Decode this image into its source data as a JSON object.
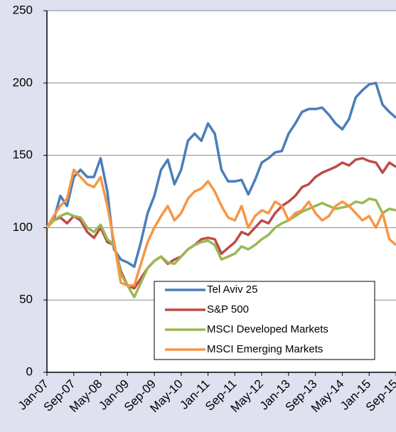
{
  "chart_data": {
    "type": "line",
    "categories": [
      "Jan-07",
      null,
      null,
      null,
      "Sep-07",
      null,
      null,
      null,
      "May-08",
      null,
      null,
      null,
      "Jan-09",
      null,
      null,
      null,
      "Sep-09",
      null,
      null,
      null,
      "May-10",
      null,
      null,
      null,
      "Jan-11",
      null,
      null,
      null,
      "Sep-11",
      null,
      null,
      null,
      "May-12",
      null,
      null,
      null,
      "Jan-13",
      null,
      null,
      null,
      "Sep-13",
      null,
      null,
      null,
      "May-14",
      null,
      null,
      null,
      "Jan-15",
      null,
      null,
      null,
      "Sep-15"
    ],
    "series": [
      {
        "name": "Tel Aviv 25",
        "color": "#4a7ebb",
        "values": [
          100,
          105,
          122,
          115,
          135,
          140,
          135,
          135,
          148,
          125,
          85,
          78,
          76,
          73,
          90,
          110,
          122,
          140,
          147,
          130,
          140,
          160,
          165,
          160,
          172,
          165,
          140,
          132,
          132,
          133,
          123,
          133,
          145,
          148,
          152,
          153,
          165,
          172,
          180,
          182,
          182,
          183,
          178,
          172,
          168,
          175,
          190,
          195,
          199,
          200,
          185,
          180,
          176
        ]
      },
      {
        "name": "S&P 500",
        "color": "#be4b48",
        "values": [
          100,
          105,
          107,
          103,
          108,
          105,
          97,
          93,
          100,
          90,
          88,
          70,
          60,
          58,
          65,
          72,
          77,
          80,
          75,
          78,
          80,
          85,
          88,
          92,
          93,
          92,
          82,
          86,
          90,
          97,
          95,
          100,
          105,
          103,
          110,
          115,
          118,
          122,
          128,
          130,
          135,
          138,
          140,
          142,
          145,
          143,
          147,
          148,
          146,
          145,
          138,
          145,
          142
        ]
      },
      {
        "name": "MSCI Developed Markets",
        "color": "#98b954",
        "values": [
          100,
          105,
          108,
          110,
          108,
          107,
          100,
          97,
          102,
          92,
          88,
          68,
          60,
          52,
          62,
          72,
          77,
          80,
          76,
          75,
          80,
          85,
          88,
          90,
          91,
          88,
          78,
          80,
          82,
          87,
          85,
          88,
          92,
          95,
          100,
          103,
          105,
          108,
          111,
          113,
          115,
          117,
          115,
          113,
          114,
          115,
          118,
          117,
          120,
          119,
          110,
          113,
          112
        ]
      },
      {
        "name": "MSCI Emerging Markets",
        "color": "#f79646",
        "values": [
          100,
          108,
          115,
          120,
          140,
          135,
          130,
          128,
          135,
          115,
          90,
          62,
          60,
          60,
          75,
          90,
          100,
          108,
          115,
          105,
          110,
          120,
          125,
          127,
          132,
          125,
          115,
          107,
          105,
          115,
          100,
          108,
          112,
          110,
          118,
          115,
          105,
          110,
          112,
          118,
          110,
          105,
          108,
          115,
          118,
          115,
          110,
          105,
          108,
          100,
          110,
          92,
          88
        ]
      }
    ],
    "ylim": [
      0,
      250
    ],
    "yticks": [
      0,
      50,
      100,
      150,
      200,
      250
    ],
    "grid": true,
    "legend": "lower-right"
  }
}
